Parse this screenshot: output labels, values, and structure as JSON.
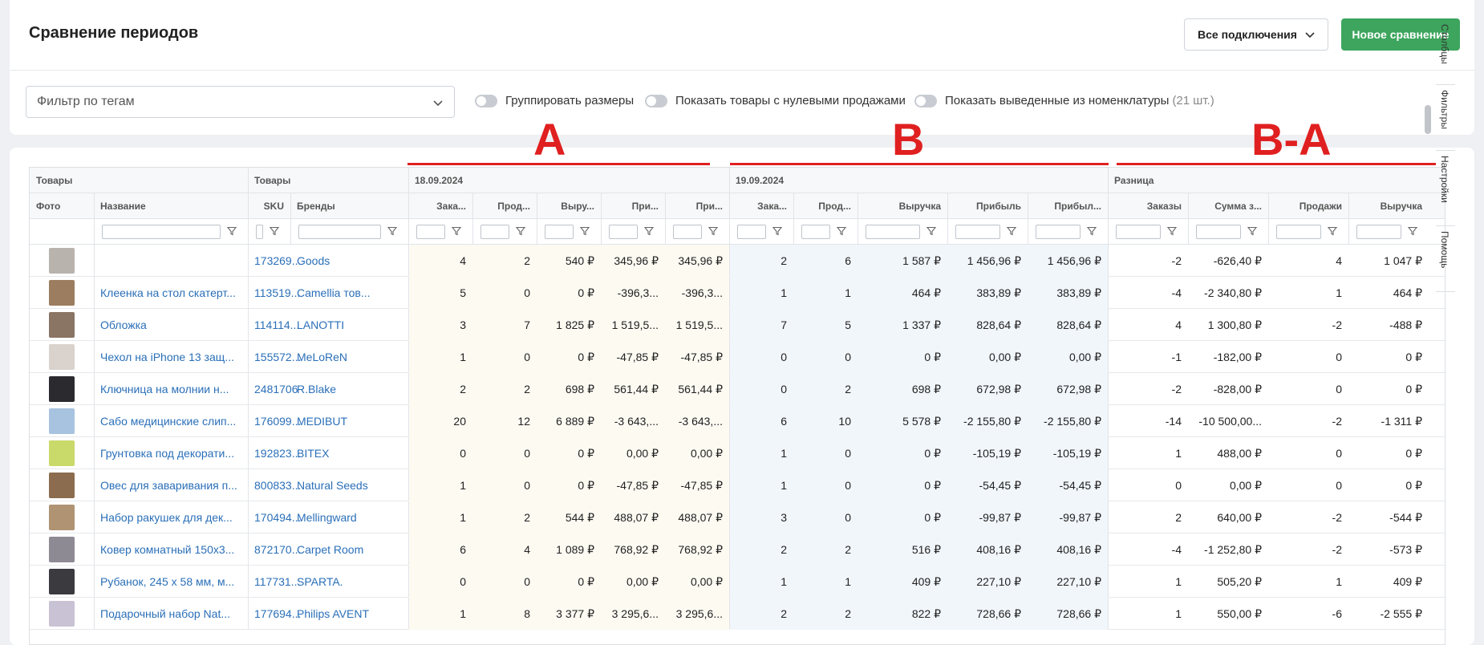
{
  "header": {
    "title": "Сравнение периодов",
    "connections_label": "Все подключения",
    "new_compare_label": "Новое сравнение"
  },
  "filters": {
    "tag_filter_placeholder": "Фильтр по тегам",
    "toggles": [
      {
        "label": "Группировать размеры",
        "extra": ""
      },
      {
        "label": "Показать товары с нулевыми продажами",
        "extra": ""
      },
      {
        "label": "Показать выведенные из номенклатуры",
        "extra": "(21 шт.)"
      }
    ]
  },
  "annotations": {
    "a": "A",
    "b": "B",
    "diff": "B-A"
  },
  "table": {
    "groups": [
      {
        "label": "Товары"
      },
      {
        "label": "Товары"
      },
      {
        "label": "18.09.2024"
      },
      {
        "label": "19.09.2024"
      },
      {
        "label": "Разница"
      }
    ],
    "columns": [
      "Фото",
      "Название",
      "SKU",
      "Бренды",
      "Зака...",
      "Прод...",
      "Выру...",
      "При...",
      "При...",
      "Зака...",
      "Прод...",
      "Выручка",
      "Прибыль",
      "Прибыл...",
      "Заказы",
      "Сумма з...",
      "Продажи",
      "Выручка"
    ],
    "rows": [
      {
        "name": "",
        "sku": "173269...",
        "brand": "Goods",
        "a": [
          "4",
          "2",
          "540 ₽",
          "345,96 ₽",
          "345,96 ₽"
        ],
        "b": [
          "2",
          "6",
          "1 587 ₽",
          "1 456,96 ₽",
          "1 456,96 ₽"
        ],
        "d": [
          "-2",
          "-626,40 ₽",
          "4",
          "1 047 ₽"
        ]
      },
      {
        "name": "Клеенка на стол скатерт...",
        "sku": "113519...",
        "brand": "Camellia тов...",
        "a": [
          "5",
          "0",
          "0 ₽",
          "-396,3...",
          "-396,3..."
        ],
        "b": [
          "1",
          "1",
          "464 ₽",
          "383,89 ₽",
          "383,89 ₽"
        ],
        "d": [
          "-4",
          "-2 340,80 ₽",
          "1",
          "464 ₽"
        ]
      },
      {
        "name": "Обложка",
        "sku": "114114...",
        "brand": "LANOTTI",
        "a": [
          "3",
          "7",
          "1 825 ₽",
          "1 519,5...",
          "1 519,5..."
        ],
        "b": [
          "7",
          "5",
          "1 337 ₽",
          "828,64 ₽",
          "828,64 ₽"
        ],
        "d": [
          "4",
          "1 300,80 ₽",
          "-2",
          "-488 ₽"
        ]
      },
      {
        "name": "Чехол на iPhone 13 защ...",
        "sku": "155572...",
        "brand": "MeLoReN",
        "a": [
          "1",
          "0",
          "0 ₽",
          "-47,85 ₽",
          "-47,85 ₽"
        ],
        "b": [
          "0",
          "0",
          "0 ₽",
          "0,00 ₽",
          "0,00 ₽"
        ],
        "d": [
          "-1",
          "-182,00 ₽",
          "0",
          "0 ₽"
        ]
      },
      {
        "name": "Ключница на молнии н...",
        "sku": "2481706",
        "brand": "R.Blake",
        "a": [
          "2",
          "2",
          "698 ₽",
          "561,44 ₽",
          "561,44 ₽"
        ],
        "b": [
          "0",
          "2",
          "698 ₽",
          "672,98 ₽",
          "672,98 ₽"
        ],
        "d": [
          "-2",
          "-828,00 ₽",
          "0",
          "0 ₽"
        ]
      },
      {
        "name": "Сабо медицинские слип...",
        "sku": "176099...",
        "brand": "MEDIBUT",
        "a": [
          "20",
          "12",
          "6 889 ₽",
          "-3 643,...",
          "-3 643,..."
        ],
        "b": [
          "6",
          "10",
          "5 578 ₽",
          "-2 155,80 ₽",
          "-2 155,80 ₽"
        ],
        "d": [
          "-14",
          "-10 500,00...",
          "-2",
          "-1 311 ₽"
        ]
      },
      {
        "name": "Грунтовка под декорати...",
        "sku": "192823...",
        "brand": "BITEX",
        "a": [
          "0",
          "0",
          "0 ₽",
          "0,00 ₽",
          "0,00 ₽"
        ],
        "b": [
          "1",
          "0",
          "0 ₽",
          "-105,19 ₽",
          "-105,19 ₽"
        ],
        "d": [
          "1",
          "488,00 ₽",
          "0",
          "0 ₽"
        ]
      },
      {
        "name": "Овес для заваривания п...",
        "sku": "800833...",
        "brand": "Natural Seeds",
        "a": [
          "1",
          "0",
          "0 ₽",
          "-47,85 ₽",
          "-47,85 ₽"
        ],
        "b": [
          "1",
          "0",
          "0 ₽",
          "-54,45 ₽",
          "-54,45 ₽"
        ],
        "d": [
          "0",
          "0,00 ₽",
          "0",
          "0 ₽"
        ]
      },
      {
        "name": "Набор ракушек для дек...",
        "sku": "170494...",
        "brand": "Mellingward",
        "a": [
          "1",
          "2",
          "544 ₽",
          "488,07 ₽",
          "488,07 ₽"
        ],
        "b": [
          "3",
          "0",
          "0 ₽",
          "-99,87 ₽",
          "-99,87 ₽"
        ],
        "d": [
          "2",
          "640,00 ₽",
          "-2",
          "-544 ₽"
        ]
      },
      {
        "name": "Ковер комнатный 150x3...",
        "sku": "872170...",
        "brand": "Carpet Room",
        "a": [
          "6",
          "4",
          "1 089 ₽",
          "768,92 ₽",
          "768,92 ₽"
        ],
        "b": [
          "2",
          "2",
          "516 ₽",
          "408,16 ₽",
          "408,16 ₽"
        ],
        "d": [
          "-4",
          "-1 252,80 ₽",
          "-2",
          "-573 ₽"
        ]
      },
      {
        "name": "Рубанок, 245 х 58 мм, м...",
        "sku": "117731...",
        "brand": "SPARTA.",
        "a": [
          "0",
          "0",
          "0 ₽",
          "0,00 ₽",
          "0,00 ₽"
        ],
        "b": [
          "1",
          "1",
          "409 ₽",
          "227,10 ₽",
          "227,10 ₽"
        ],
        "d": [
          "1",
          "505,20 ₽",
          "1",
          "409 ₽"
        ]
      },
      {
        "name": "Подарочный набор Nat...",
        "sku": "177694...",
        "brand": "Philips AVENT",
        "a": [
          "1",
          "8",
          "3 377 ₽",
          "3 295,6...",
          "3 295,6..."
        ],
        "b": [
          "2",
          "2",
          "822 ₽",
          "728,66 ₽",
          "728,66 ₽"
        ],
        "d": [
          "1",
          "550,00 ₽",
          "-6",
          "-2 555 ₽"
        ]
      }
    ]
  },
  "sidebar": {
    "tabs": [
      "Столбцы",
      "Фильтры",
      "Настройки",
      "Помощь"
    ]
  },
  "colors": {
    "accent_green": "#3da55d",
    "link": "#2a6fb8",
    "annotation_red": "#e02020"
  }
}
